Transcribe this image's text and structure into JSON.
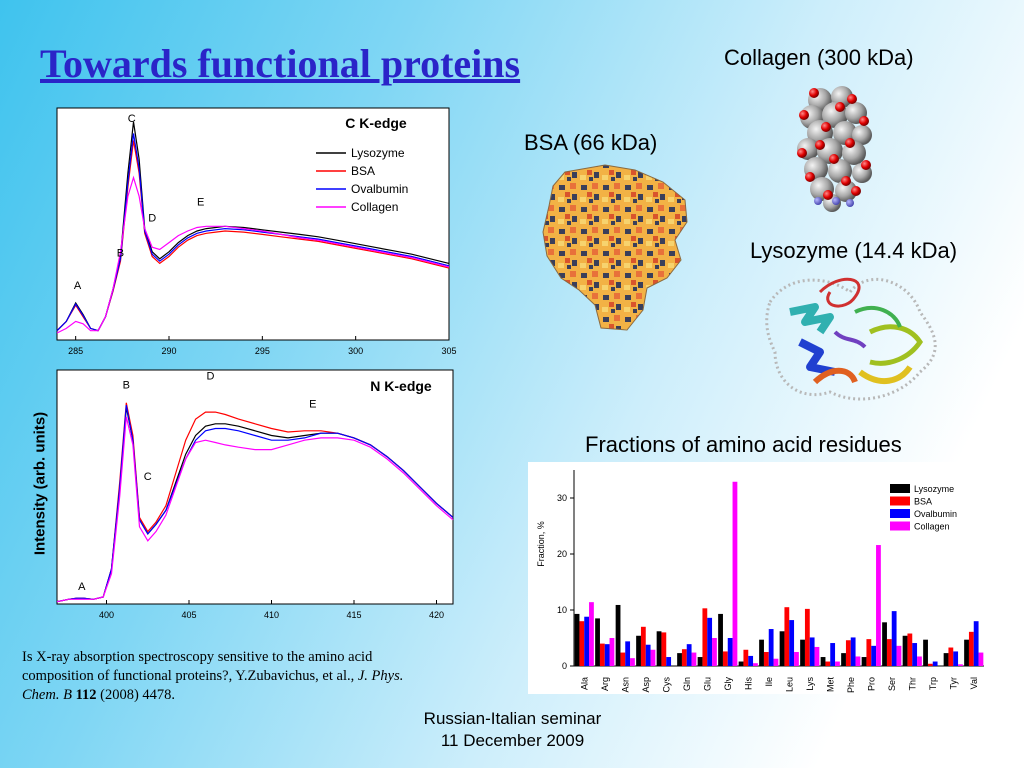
{
  "title": "Towards functional proteins",
  "molecules": {
    "collagen": "Collagen (300 kDa)",
    "bsa": "BSA (66 kDa)",
    "lysozyme": "Lysozyme (14.4 kDa)"
  },
  "shared_ylabel": "Intensity (arb. units)",
  "citation": {
    "text": "Is X-ray absorption spectroscopy sensitive to the amino acid composition of functional proteins?, Y.Zubavichus, et al., ",
    "journal": "J. Phys. Chem. B",
    "volume": "112",
    "rest": " (2008) 4478."
  },
  "footer": {
    "line1": "Russian-Italian seminar",
    "line2": "11 December 2009"
  },
  "bar_chart_title": "Fractions of amino acid residues",
  "colors": {
    "Lysozyme": "#000000",
    "BSA": "#ff0000",
    "Ovalbumin": "#0000ff",
    "Collagen": "#ff00ff",
    "title": "#2a24c8"
  },
  "chart_data": [
    {
      "type": "line",
      "title": "C K-edge",
      "xlim": [
        284,
        305
      ],
      "xticks": [
        285,
        290,
        295,
        300,
        305
      ],
      "annotations": [
        {
          "text": "A",
          "x": 285.1,
          "y": 0.22
        },
        {
          "text": "B",
          "x": 287.4,
          "y": 0.36
        },
        {
          "text": "C",
          "x": 288.0,
          "y": 0.94
        },
        {
          "text": "D",
          "x": 289.1,
          "y": 0.51
        },
        {
          "text": "E",
          "x": 291.7,
          "y": 0.58
        }
      ],
      "series": [
        {
          "name": "Lysozyme",
          "x": [
            284,
            284.5,
            285,
            285.4,
            285.8,
            286.2,
            286.6,
            287,
            287.4,
            287.8,
            288.1,
            288.4,
            288.7,
            289.1,
            289.5,
            290,
            290.5,
            291,
            291.5,
            292,
            292.5,
            293,
            294,
            295,
            296,
            297,
            298,
            299,
            300,
            301,
            302,
            303,
            304,
            305
          ],
          "y": [
            0.04,
            0.08,
            0.16,
            0.11,
            0.05,
            0.04,
            0.1,
            0.22,
            0.36,
            0.72,
            0.94,
            0.78,
            0.48,
            0.38,
            0.35,
            0.38,
            0.42,
            0.45,
            0.47,
            0.48,
            0.485,
            0.49,
            0.485,
            0.475,
            0.465,
            0.455,
            0.445,
            0.43,
            0.415,
            0.4,
            0.385,
            0.37,
            0.35,
            0.33
          ]
        },
        {
          "name": "BSA",
          "x": [
            284,
            284.5,
            285,
            285.4,
            285.8,
            286.2,
            286.6,
            287,
            287.4,
            287.8,
            288.1,
            288.4,
            288.7,
            289.1,
            289.5,
            290,
            290.5,
            291,
            291.5,
            292,
            292.5,
            293,
            294,
            295,
            296,
            297,
            298,
            299,
            300,
            301,
            302,
            303,
            304,
            305
          ],
          "y": [
            0.04,
            0.08,
            0.15,
            0.1,
            0.05,
            0.04,
            0.1,
            0.21,
            0.34,
            0.66,
            0.86,
            0.72,
            0.46,
            0.36,
            0.33,
            0.36,
            0.4,
            0.43,
            0.45,
            0.46,
            0.465,
            0.47,
            0.465,
            0.455,
            0.445,
            0.435,
            0.425,
            0.41,
            0.395,
            0.38,
            0.365,
            0.35,
            0.33,
            0.31
          ]
        },
        {
          "name": "Ovalbumin",
          "x": [
            284,
            284.5,
            285,
            285.4,
            285.8,
            286.2,
            286.6,
            287,
            287.4,
            287.8,
            288.1,
            288.4,
            288.7,
            289.1,
            289.5,
            290,
            290.5,
            291,
            291.5,
            292,
            292.5,
            293,
            294,
            295,
            296,
            297,
            298,
            299,
            300,
            301,
            302,
            303,
            304,
            305
          ],
          "y": [
            0.04,
            0.08,
            0.155,
            0.105,
            0.05,
            0.04,
            0.1,
            0.215,
            0.35,
            0.68,
            0.89,
            0.74,
            0.47,
            0.37,
            0.34,
            0.37,
            0.41,
            0.44,
            0.46,
            0.47,
            0.475,
            0.48,
            0.475,
            0.465,
            0.455,
            0.445,
            0.435,
            0.42,
            0.405,
            0.39,
            0.375,
            0.36,
            0.34,
            0.32
          ]
        },
        {
          "name": "Collagen",
          "x": [
            284,
            284.5,
            285,
            285.4,
            285.8,
            286.2,
            286.6,
            287,
            287.4,
            287.8,
            288.1,
            288.4,
            288.7,
            289.1,
            289.5,
            290,
            290.5,
            291,
            291.5,
            292,
            292.5,
            293,
            294,
            295,
            296,
            297,
            298,
            299,
            300,
            301,
            302,
            303,
            304,
            305
          ],
          "y": [
            0.03,
            0.05,
            0.08,
            0.07,
            0.04,
            0.04,
            0.1,
            0.22,
            0.38,
            0.62,
            0.7,
            0.62,
            0.48,
            0.4,
            0.39,
            0.42,
            0.45,
            0.47,
            0.485,
            0.49,
            0.49,
            0.49,
            0.48,
            0.47,
            0.455,
            0.44,
            0.43,
            0.415,
            0.4,
            0.385,
            0.37,
            0.355,
            0.335,
            0.315
          ]
        }
      ]
    },
    {
      "type": "line",
      "title": "N K-edge",
      "xlim": [
        397,
        421
      ],
      "xticks": [
        400,
        405,
        410,
        415,
        420
      ],
      "ylabel": "Intensity (arb. units)",
      "annotations": [
        {
          "text": "A",
          "x": 398.5,
          "y": 0.06
        },
        {
          "text": "B",
          "x": 401.2,
          "y": 0.92
        },
        {
          "text": "C",
          "x": 402.5,
          "y": 0.53
        },
        {
          "text": "D",
          "x": 406.3,
          "y": 0.96
        },
        {
          "text": "E",
          "x": 412.5,
          "y": 0.84
        }
      ],
      "series": [
        {
          "name": "Lysozyme",
          "x": [
            397,
            397.7,
            398.2,
            398.6,
            399.2,
            399.8,
            400.3,
            400.8,
            401.2,
            401.6,
            402,
            402.5,
            403,
            403.6,
            404.2,
            404.8,
            405.4,
            406,
            406.6,
            407.2,
            408,
            409,
            410,
            411,
            412,
            413,
            414,
            415,
            416,
            417,
            418,
            419,
            420,
            421
          ],
          "y": [
            0.01,
            0.02,
            0.025,
            0.025,
            0.02,
            0.03,
            0.15,
            0.5,
            0.84,
            0.7,
            0.36,
            0.3,
            0.34,
            0.4,
            0.52,
            0.64,
            0.72,
            0.76,
            0.77,
            0.77,
            0.76,
            0.74,
            0.72,
            0.71,
            0.72,
            0.73,
            0.73,
            0.71,
            0.68,
            0.63,
            0.57,
            0.5,
            0.43,
            0.37
          ]
        },
        {
          "name": "BSA",
          "x": [
            397,
            397.7,
            398.2,
            398.6,
            399.2,
            399.8,
            400.3,
            400.8,
            401.2,
            401.6,
            402,
            402.5,
            403,
            403.6,
            404.2,
            404.8,
            405.4,
            406,
            406.6,
            407.2,
            408,
            409,
            410,
            411,
            412,
            413,
            414,
            415,
            416,
            417,
            418,
            419,
            420,
            421
          ],
          "y": [
            0.01,
            0.02,
            0.025,
            0.025,
            0.02,
            0.03,
            0.15,
            0.52,
            0.86,
            0.72,
            0.37,
            0.31,
            0.35,
            0.42,
            0.56,
            0.7,
            0.79,
            0.82,
            0.82,
            0.81,
            0.79,
            0.77,
            0.75,
            0.735,
            0.74,
            0.74,
            0.73,
            0.71,
            0.68,
            0.63,
            0.57,
            0.5,
            0.43,
            0.37
          ]
        },
        {
          "name": "Ovalbumin",
          "x": [
            397,
            397.7,
            398.2,
            398.6,
            399.2,
            399.8,
            400.3,
            400.8,
            401.2,
            401.6,
            402,
            402.5,
            403,
            403.6,
            404.2,
            404.8,
            405.4,
            406,
            406.6,
            407.2,
            408,
            409,
            410,
            411,
            412,
            413,
            414,
            415,
            416,
            417,
            418,
            419,
            420,
            421
          ],
          "y": [
            0.01,
            0.02,
            0.025,
            0.025,
            0.02,
            0.03,
            0.15,
            0.5,
            0.85,
            0.7,
            0.36,
            0.3,
            0.34,
            0.4,
            0.51,
            0.62,
            0.7,
            0.74,
            0.75,
            0.75,
            0.74,
            0.72,
            0.7,
            0.7,
            0.71,
            0.73,
            0.73,
            0.71,
            0.68,
            0.63,
            0.57,
            0.5,
            0.43,
            0.37
          ]
        },
        {
          "name": "Collagen",
          "x": [
            397,
            397.7,
            398.2,
            398.6,
            399.2,
            399.8,
            400.3,
            400.8,
            401.2,
            401.6,
            402,
            402.5,
            403,
            403.6,
            404.2,
            404.8,
            405.4,
            406,
            406.6,
            407.2,
            408,
            409,
            410,
            411,
            412,
            413,
            414,
            415,
            416,
            417,
            418,
            419,
            420,
            421
          ],
          "y": [
            0.01,
            0.02,
            0.02,
            0.02,
            0.02,
            0.03,
            0.13,
            0.46,
            0.8,
            0.68,
            0.33,
            0.27,
            0.31,
            0.38,
            0.5,
            0.62,
            0.69,
            0.7,
            0.69,
            0.68,
            0.67,
            0.66,
            0.66,
            0.68,
            0.7,
            0.71,
            0.71,
            0.7,
            0.67,
            0.62,
            0.56,
            0.49,
            0.42,
            0.36
          ]
        }
      ]
    },
    {
      "type": "bar",
      "title": "Fractions of amino acid residues",
      "ylabel": "Fraction, %",
      "ylim": [
        0,
        35
      ],
      "yticks": [
        0,
        10,
        20,
        30
      ],
      "legend": "top-right",
      "categories": [
        "Ala",
        "Arg",
        "Asn",
        "Asp",
        "Cys",
        "Gln",
        "Glu",
        "Gly",
        "His",
        "Ile",
        "Leu",
        "Lys",
        "Met",
        "Phe",
        "Pro",
        "Ser",
        "Thr",
        "Trp",
        "Tyr",
        "Val"
      ],
      "series": [
        {
          "name": "Lysozyme",
          "values": [
            9.3,
            8.5,
            10.9,
            5.4,
            6.2,
            2.3,
            1.6,
            9.3,
            0.8,
            4.7,
            6.2,
            4.7,
            1.6,
            2.3,
            1.6,
            7.8,
            5.4,
            4.7,
            2.3,
            4.7
          ]
        },
        {
          "name": "BSA",
          "values": [
            8.0,
            4.0,
            2.4,
            7.0,
            6.0,
            3.0,
            10.3,
            2.6,
            2.9,
            2.5,
            10.5,
            10.2,
            0.8,
            4.6,
            4.8,
            4.8,
            5.8,
            0.4,
            3.3,
            6.1
          ]
        },
        {
          "name": "Ovalbumin",
          "values": [
            8.8,
            3.9,
            4.4,
            3.8,
            1.6,
            3.9,
            8.6,
            5.0,
            1.8,
            6.6,
            8.2,
            5.1,
            4.1,
            5.1,
            3.6,
            9.8,
            4.1,
            0.8,
            2.6,
            8.0
          ]
        },
        {
          "name": "Collagen",
          "values": [
            11.4,
            5.0,
            1.4,
            2.9,
            0.0,
            2.4,
            5.0,
            32.9,
            0.5,
            1.3,
            2.5,
            3.4,
            0.8,
            1.7,
            21.6,
            3.6,
            1.7,
            0.0,
            0.3,
            2.4
          ]
        }
      ]
    }
  ]
}
